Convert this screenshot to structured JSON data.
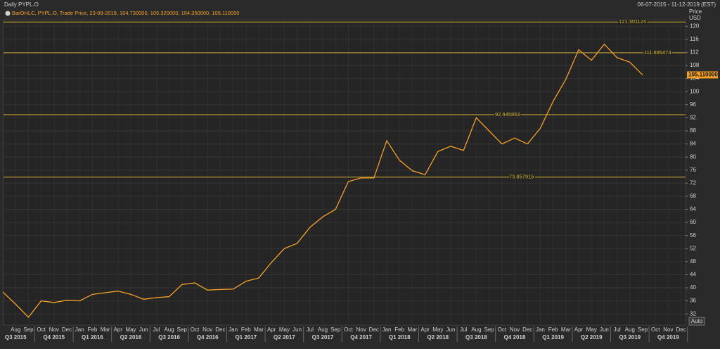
{
  "header": {
    "title": "Daily PYPL.O",
    "date_range": "06-07-2015 - 11-12-2019 (EST)",
    "legend": "BarOHLC, PYPL.O, Trade Price, 23-09-2019, 104.730000, 105.320000, 104.350000, 105.110000",
    "axis_title": [
      "Price",
      "USD"
    ],
    "button": "Auto"
  },
  "chart_data": {
    "type": "line",
    "title": "Daily PYPL.O",
    "categories": [
      null,
      "Aug",
      "Sep",
      "Oct",
      "Nov",
      "Dec",
      "Jan",
      "Feb",
      "Mar",
      "Apr",
      "May",
      "Jun",
      "Jul",
      "Aug",
      "Sep",
      "Oct",
      "Nov",
      "Dec",
      "Jan",
      "Feb",
      "Mar",
      "Apr",
      "May",
      "Jun",
      "Jul",
      "Aug",
      "Sep",
      "Oct",
      "Nov",
      "Dec",
      "Jan",
      "Feb",
      "Mar",
      "Apr",
      "May",
      "Jun",
      "Jul",
      "Aug",
      "Sep",
      "Oct",
      "Nov",
      "Dec",
      "Jan",
      "Feb",
      "Mar",
      "Apr",
      "May",
      "Jun",
      "Jul",
      "Aug",
      "Sep",
      "Oct",
      "Nov",
      "Dec"
    ],
    "quarters": [
      "Q3 2015",
      "Q4 2015",
      "Q1 2016",
      "Q2 2016",
      "Q3 2016",
      "Q4 2016",
      "Q1 2017",
      "Q2 2017",
      "Q3 2017",
      "Q4 2017",
      "Q1 2018",
      "Q2 2018",
      "Q3 2018",
      "Q4 2018",
      "Q1 2019",
      "Q2 2019",
      "Q3 2019",
      "Q4 2019"
    ],
    "series": [
      {
        "name": "PYPL.O",
        "color": "#f7a128",
        "values": [
          38.7,
          35,
          31,
          36,
          35.5,
          36.2,
          36,
          38,
          38.5,
          39,
          38,
          36.5,
          37,
          37.3,
          41,
          41.5,
          39.3,
          39.5,
          39.6,
          42,
          43,
          47.8,
          52,
          53.6,
          58.5,
          61.7,
          64,
          72.5,
          73.6,
          73.6,
          85,
          79,
          75.8,
          74.6,
          81.7,
          83.3,
          82,
          92,
          88,
          84,
          85.8,
          84,
          88.8,
          97,
          103.8,
          112.8,
          109.6,
          114.5,
          110.4,
          109,
          105.1,
          null,
          null,
          null
        ]
      }
    ],
    "levels": [
      121.301124,
      111.895474,
      92.945853,
      73.857915
    ],
    "level_color": "#d4b32a",
    "last_price": {
      "value": 105.11,
      "label": "105.110000"
    },
    "ylim": [
      28.6,
      122
    ],
    "yticks": [
      32,
      36,
      40,
      44,
      48,
      52,
      56,
      60,
      64,
      68,
      72,
      76,
      80,
      84,
      88,
      92,
      96,
      100,
      104,
      108,
      112,
      116,
      120
    ],
    "grid": true
  }
}
